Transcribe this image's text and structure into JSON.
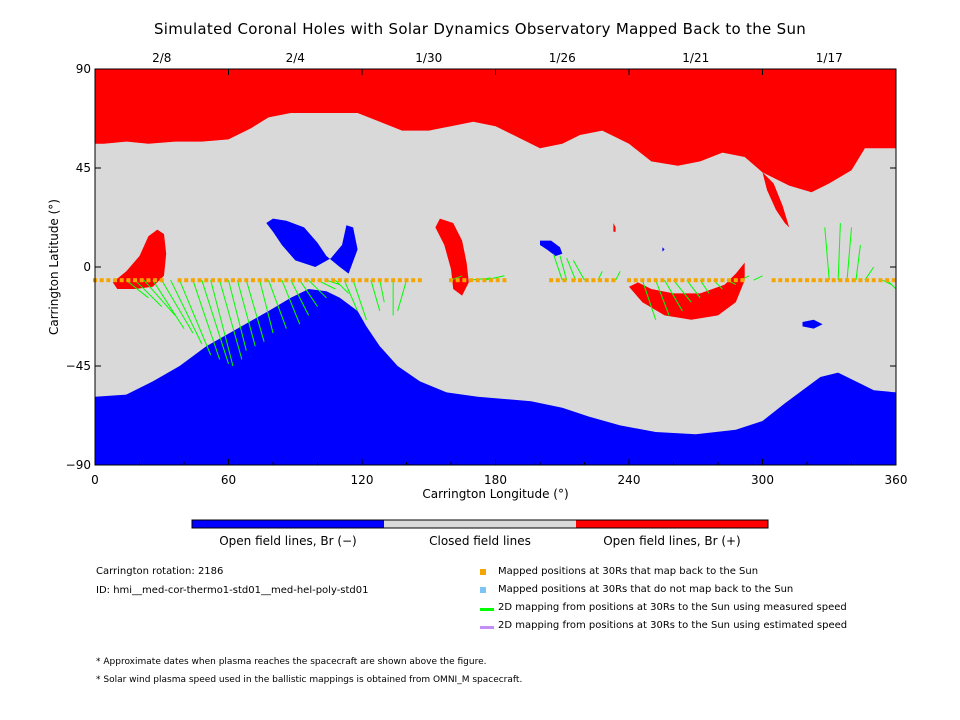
{
  "chart_data": {
    "type": "map",
    "title": "Simulated Coronal Holes with Solar Dynamics Observatory Mapped Back to the Sun",
    "xlabel": "Carrington Longitude (°)",
    "ylabel": "Carrington Latitude (°)",
    "xlim": [
      0,
      360
    ],
    "ylim": [
      -90,
      90
    ],
    "x_ticks": [
      0,
      60,
      120,
      180,
      240,
      300,
      360
    ],
    "y_ticks": [
      {
        "value": 90,
        "label": "90"
      },
      {
        "value": 45,
        "label": "45"
      },
      {
        "value": 0,
        "label": "0"
      },
      {
        "value": -45,
        "label": "−45"
      },
      {
        "value": -90,
        "label": "−90"
      }
    ],
    "top_date_ticks": [
      {
        "label": "2/8",
        "lon": 30
      },
      {
        "label": "2/4",
        "lon": 90
      },
      {
        "label": "1/30",
        "lon": 150
      },
      {
        "label": "1/26",
        "lon": 210
      },
      {
        "label": "1/21",
        "lon": 270
      },
      {
        "label": "1/17",
        "lon": 330
      }
    ],
    "regions": [
      {
        "polarity": "positive",
        "label": "north polar coronal hole",
        "polygon": [
          [
            0,
            90
          ],
          [
            360,
            90
          ],
          [
            360,
            54
          ],
          [
            346,
            54
          ],
          [
            340,
            44
          ],
          [
            330,
            38
          ],
          [
            322,
            34
          ],
          [
            312,
            37
          ],
          [
            300,
            43
          ],
          [
            292,
            50
          ],
          [
            282,
            52
          ],
          [
            272,
            48
          ],
          [
            262,
            46
          ],
          [
            250,
            48
          ],
          [
            240,
            56
          ],
          [
            228,
            62
          ],
          [
            218,
            60
          ],
          [
            210,
            56
          ],
          [
            200,
            54
          ],
          [
            192,
            58
          ],
          [
            180,
            64
          ],
          [
            170,
            66
          ],
          [
            160,
            64
          ],
          [
            150,
            62
          ],
          [
            138,
            62
          ],
          [
            128,
            66
          ],
          [
            118,
            70
          ],
          [
            108,
            70
          ],
          [
            100,
            70
          ],
          [
            88,
            70
          ],
          [
            78,
            68
          ],
          [
            70,
            63
          ],
          [
            60,
            58
          ],
          [
            48,
            57
          ],
          [
            36,
            57
          ],
          [
            24,
            56
          ],
          [
            14,
            57
          ],
          [
            4,
            56
          ],
          [
            0,
            56
          ]
        ]
      },
      {
        "polarity": "positive",
        "label": "extension near 300",
        "polygon": [
          [
            300,
            43
          ],
          [
            302,
            35
          ],
          [
            306,
            26
          ],
          [
            310,
            20
          ],
          [
            312,
            18
          ],
          [
            309,
            28
          ],
          [
            305,
            38
          ]
        ]
      },
      {
        "polarity": "positive",
        "label": "lobe near 20",
        "polygon": [
          [
            8,
            -7
          ],
          [
            14,
            -2
          ],
          [
            20,
            5
          ],
          [
            24,
            14
          ],
          [
            28,
            17
          ],
          [
            31,
            15
          ],
          [
            32,
            6
          ],
          [
            31,
            -4
          ],
          [
            26,
            -9
          ],
          [
            18,
            -10
          ],
          [
            10,
            -10
          ]
        ]
      },
      {
        "polarity": "positive",
        "label": "lobe near 160",
        "polygon": [
          [
            155,
            22
          ],
          [
            161,
            20
          ],
          [
            165,
            12
          ],
          [
            167,
            2
          ],
          [
            168,
            -7
          ],
          [
            165,
            -13
          ],
          [
            161,
            -10
          ],
          [
            160,
            -1
          ],
          [
            157,
            10
          ],
          [
            153,
            18
          ]
        ]
      },
      {
        "polarity": "positive",
        "label": "lobe near 240 to 290",
        "polygon": [
          [
            240,
            -9
          ],
          [
            246,
            -16
          ],
          [
            256,
            -22
          ],
          [
            268,
            -24
          ],
          [
            280,
            -22
          ],
          [
            288,
            -16
          ],
          [
            292,
            -6
          ],
          [
            292,
            2
          ],
          [
            288,
            -3
          ],
          [
            283,
            -8
          ],
          [
            272,
            -12
          ],
          [
            260,
            -12
          ],
          [
            250,
            -10
          ],
          [
            244,
            -7
          ]
        ]
      },
      {
        "polarity": "positive",
        "label": "small spot",
        "polygon": [
          [
            233,
            20
          ],
          [
            234,
            18
          ],
          [
            234,
            16
          ],
          [
            233,
            16
          ]
        ]
      },
      {
        "polarity": "negative",
        "label": "south polar coronal hole",
        "polygon": [
          [
            0,
            -90
          ],
          [
            360,
            -90
          ],
          [
            360,
            -57
          ],
          [
            350,
            -56
          ],
          [
            342,
            -52
          ],
          [
            334,
            -48
          ],
          [
            326,
            -50
          ],
          [
            318,
            -56
          ],
          [
            310,
            -62
          ],
          [
            300,
            -70
          ],
          [
            288,
            -74
          ],
          [
            270,
            -76
          ],
          [
            252,
            -75
          ],
          [
            236,
            -72
          ],
          [
            222,
            -68
          ],
          [
            210,
            -64
          ],
          [
            196,
            -61
          ],
          [
            184,
            -60
          ],
          [
            172,
            -59
          ],
          [
            158,
            -57
          ],
          [
            146,
            -52
          ],
          [
            136,
            -45
          ],
          [
            128,
            -36
          ],
          [
            122,
            -27
          ],
          [
            118,
            -20
          ],
          [
            110,
            -14
          ],
          [
            104,
            -11
          ],
          [
            96,
            -10
          ],
          [
            88,
            -14
          ],
          [
            78,
            -20
          ],
          [
            64,
            -28
          ],
          [
            50,
            -36
          ],
          [
            38,
            -45
          ],
          [
            26,
            -52
          ],
          [
            14,
            -58
          ],
          [
            0,
            -59
          ]
        ]
      },
      {
        "polarity": "negative",
        "label": "hook near 100",
        "polygon": [
          [
            86,
            21
          ],
          [
            94,
            18
          ],
          [
            100,
            11
          ],
          [
            104,
            5
          ],
          [
            110,
            0
          ],
          [
            114,
            -3
          ],
          [
            118,
            8
          ],
          [
            116,
            18
          ],
          [
            113,
            19
          ],
          [
            111,
            10
          ],
          [
            106,
            4
          ],
          [
            99,
            0
          ],
          [
            90,
            3
          ],
          [
            84,
            10
          ],
          [
            80,
            16
          ],
          [
            77,
            20
          ],
          [
            80,
            22
          ]
        ]
      },
      {
        "polarity": "negative",
        "label": "island near 200",
        "polygon": [
          [
            200,
            12
          ],
          [
            205,
            12
          ],
          [
            209,
            9
          ],
          [
            210,
            6
          ],
          [
            207,
            5
          ],
          [
            203,
            8
          ],
          [
            200,
            10
          ]
        ]
      },
      {
        "polarity": "negative",
        "label": "island near 320",
        "polygon": [
          [
            318,
            -25
          ],
          [
            323,
            -24
          ],
          [
            327,
            -26
          ],
          [
            323,
            -28
          ],
          [
            318,
            -27
          ]
        ]
      },
      {
        "polarity": "negative",
        "label": "spot near 255",
        "polygon": [
          [
            255,
            9
          ],
          [
            256,
            8
          ],
          [
            255,
            7
          ]
        ]
      }
    ],
    "points_mapping": {
      "lat": -6,
      "lon_ranges": [
        [
          0,
          30
        ],
        [
          38,
          148
        ],
        [
          160,
          185
        ],
        [
          205,
          213
        ],
        [
          215,
          235
        ],
        [
          240,
          292
        ],
        [
          305,
          360
        ]
      ]
    },
    "green_mapping_segments": [
      [
        14,
        -6,
        24,
        -14
      ],
      [
        18,
        -6,
        30,
        -18
      ],
      [
        22,
        -6,
        36,
        -22
      ],
      [
        26,
        -6,
        40,
        -28
      ],
      [
        30,
        -6,
        44,
        -30
      ],
      [
        34,
        -6,
        48,
        -35
      ],
      [
        38,
        -6,
        52,
        -40
      ],
      [
        44,
        -6,
        56,
        -42
      ],
      [
        48,
        -6,
        60,
        -44
      ],
      [
        52,
        -6,
        62,
        -45
      ],
      [
        56,
        -6,
        66,
        -42
      ],
      [
        60,
        -6,
        68,
        -38
      ],
      [
        64,
        -6,
        72,
        -36
      ],
      [
        68,
        -6,
        76,
        -34
      ],
      [
        74,
        -6,
        80,
        -30
      ],
      [
        78,
        -6,
        86,
        -28
      ],
      [
        84,
        -6,
        92,
        -26
      ],
      [
        88,
        -6,
        96,
        -22
      ],
      [
        92,
        -6,
        100,
        -18
      ],
      [
        96,
        -6,
        104,
        -14
      ],
      [
        100,
        -6,
        108,
        -10
      ],
      [
        104,
        -6,
        110,
        -8
      ],
      [
        108,
        -6,
        114,
        -12
      ],
      [
        112,
        -6,
        118,
        -20
      ],
      [
        116,
        -6,
        122,
        -24
      ],
      [
        124,
        -6,
        128,
        -20
      ],
      [
        128,
        -6,
        130,
        -16
      ],
      [
        134,
        -6,
        134,
        -22
      ],
      [
        140,
        -6,
        136,
        -20
      ],
      [
        160,
        -6,
        165,
        -4
      ],
      [
        168,
        -6,
        178,
        -5
      ],
      [
        175,
        -6,
        184,
        -4
      ],
      [
        210,
        -6,
        206,
        6
      ],
      [
        212,
        -6,
        209,
        5
      ],
      [
        216,
        -6,
        212,
        4
      ],
      [
        220,
        -6,
        215,
        3
      ],
      [
        226,
        -6,
        228,
        -2
      ],
      [
        234,
        -6,
        236,
        -2
      ],
      [
        246,
        -6,
        252,
        -24
      ],
      [
        252,
        -6,
        258,
        -22
      ],
      [
        256,
        -6,
        264,
        -20
      ],
      [
        260,
        -6,
        268,
        -16
      ],
      [
        266,
        -6,
        272,
        -14
      ],
      [
        272,
        -6,
        276,
        -12
      ],
      [
        278,
        -6,
        282,
        -10
      ],
      [
        284,
        -6,
        288,
        -8
      ],
      [
        290,
        -6,
        294,
        -4
      ],
      [
        296,
        -6,
        300,
        -4
      ],
      [
        330,
        -6,
        328,
        18
      ],
      [
        334,
        -6,
        335,
        20
      ],
      [
        338,
        -6,
        340,
        18
      ],
      [
        342,
        -6,
        344,
        10
      ],
      [
        346,
        -6,
        350,
        0
      ],
      [
        354,
        -6,
        358,
        -8
      ],
      [
        356,
        -6,
        360,
        -10
      ],
      [
        324,
        -6,
        322,
        -6
      ]
    ],
    "colorbar": [
      "Open field lines, Br (−)",
      "Closed field lines",
      "Open field lines, Br (+)"
    ],
    "legend": [
      {
        "label": "Mapped positions at 30Rs that map back to the Sun",
        "symbol": "square",
        "color": "#f5a500"
      },
      {
        "label": "Mapped positions at 30Rs that do not map back to the Sun",
        "symbol": "square",
        "color": "#7ec3f5"
      },
      {
        "label": "2D mapping from positions at 30Rs to the Sun using measured speed",
        "symbol": "line",
        "color": "#00ff00"
      },
      {
        "label": "2D mapping from positions at 30Rs to the Sun using estimated speed",
        "symbol": "line",
        "color": "#c38ef5"
      }
    ]
  },
  "colors": {
    "positive": "#ff0000",
    "negative": "#0000ff",
    "closed": "#d9d9d9",
    "points": "#f5a500",
    "mapping": "#00ff00"
  },
  "info": {
    "carrington_rotation": "Carrington rotation: 2186",
    "model_id": "ID: hmi__med-cor-thermo1-std01__med-hel-poly-std01"
  },
  "notes": [
    "* Approximate dates when plasma reaches the spacecraft are shown above the figure.",
    "* Solar wind plasma speed used in the ballistic mappings is obtained from OMNI_M spacecraft."
  ]
}
